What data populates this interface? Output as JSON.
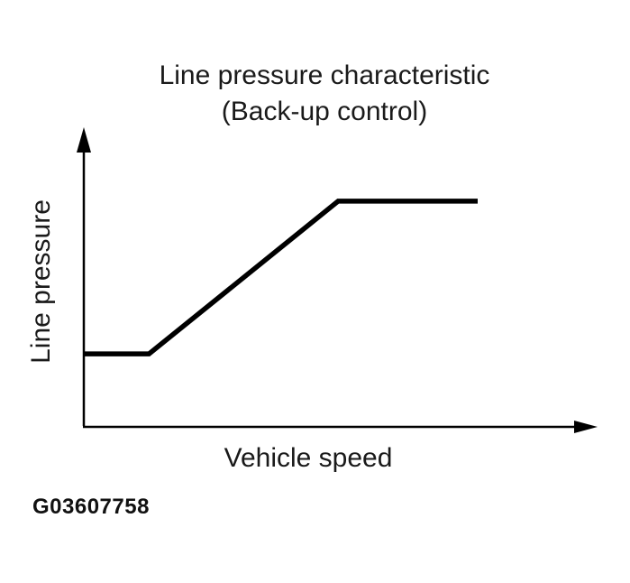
{
  "page": {
    "background_color": "#ffffff",
    "ink_color": "#000000"
  },
  "figure": {
    "title_line1": "Line pressure characteristic",
    "title_line2": "(Back-up control)",
    "y_axis_label": "Line pressure",
    "x_axis_label": "Vehicle speed",
    "figure_id": "G03607758"
  },
  "chart_data": {
    "type": "line",
    "title": "Line pressure characteristic (Back-up control)",
    "xlabel": "Vehicle speed",
    "ylabel": "Line pressure",
    "x_range": [
      0,
      1
    ],
    "y_range": [
      0,
      1
    ],
    "grid": false,
    "tick_labels": "none",
    "legend": "none",
    "axis_color": "#000000",
    "line_color": "#000000",
    "line_width": 5.5,
    "series": [
      {
        "name": "Line pressure",
        "description": "flat low segment, linear ramp, flat high saturation",
        "points": [
          [
            0.0,
            0.245
          ],
          [
            0.127,
            0.245
          ],
          [
            0.496,
            0.758
          ],
          [
            0.768,
            0.758
          ]
        ]
      }
    ]
  }
}
